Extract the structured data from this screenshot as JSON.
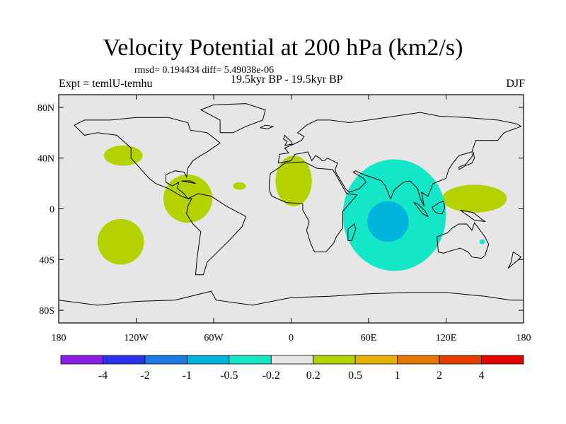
{
  "title": "Velocity Potential at 200 hPa (km2/s)",
  "stats": "rmsd= 0.194434 diff= 5.49038e-06",
  "experiment": "Expt = temlU-temhu",
  "period": "19.5kyr BP - 19.5kyr BP",
  "season": "DJF",
  "colors": {
    "background": "#e6e6e6",
    "positive_weak": "#b4d200",
    "negative_weak": "#14e6c8",
    "negative_mid": "#00b4dc",
    "coast": "#000000"
  },
  "chart_data": {
    "type": "heatmap",
    "projection": "cylindrical-equidistant",
    "x_ticks": [
      "180",
      "120W",
      "60W",
      "0",
      "60E",
      "120E",
      "180"
    ],
    "y_ticks": [
      "80N",
      "40N",
      "0",
      "40S",
      "80S"
    ],
    "lon_range": [
      -180,
      180
    ],
    "lat_range": [
      -90,
      90
    ],
    "regions": [
      {
        "name": "north-pacific-positive",
        "level": "0.2-0.5",
        "lon": -130,
        "lat": 42,
        "rlon": 15,
        "rlat": 8
      },
      {
        "name": "americas-positive",
        "level": "0.2-0.5",
        "lon": -80,
        "lat": 8,
        "rlon": 19,
        "rlat": 19
      },
      {
        "name": "atlantic-small-positive",
        "level": "0.2-0.5",
        "lon": -40,
        "lat": 18,
        "rlon": 5,
        "rlat": 3
      },
      {
        "name": "south-pacific-positive",
        "level": "0.2-0.5",
        "lon": -132,
        "lat": -26,
        "rlon": 18,
        "rlat": 18
      },
      {
        "name": "africa-positive",
        "level": "0.2-0.5",
        "lon": 2,
        "lat": 22,
        "rlon": 14,
        "rlat": 20
      },
      {
        "name": "west-pacific-positive",
        "level": "0.2-0.5",
        "lon": 142,
        "lat": 8,
        "rlon": 25,
        "rlat": 11
      },
      {
        "name": "indian-ocean-negative",
        "level": "-0.5--0.2",
        "lon": 80,
        "lat": -5,
        "rlon": 40,
        "rlat": 44
      },
      {
        "name": "indian-ocean-core-negative",
        "level": "-1--0.5",
        "lon": 75,
        "lat": -10,
        "rlon": 16,
        "rlat": 16
      },
      {
        "name": "australia-small-negative",
        "level": "-0.5--0.2",
        "lon": 148,
        "lat": -26,
        "rlon": 2,
        "rlat": 2
      }
    ],
    "colorbar": {
      "levels": [
        "-4",
        "-2",
        "-1",
        "-0.5",
        "-0.2",
        "0.2",
        "0.5",
        "1",
        "2",
        "4"
      ],
      "colors": [
        "#8c1ee6",
        "#2832e6",
        "#1e78e6",
        "#00b4dc",
        "#14e6c8",
        "#e6e6e6",
        "#b4d200",
        "#e6b400",
        "#e67800",
        "#e63c00",
        "#e60000"
      ]
    }
  }
}
